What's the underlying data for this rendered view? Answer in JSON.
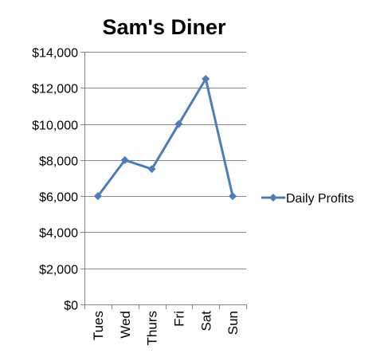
{
  "chart_data": {
    "type": "line",
    "title": "Sam's Diner",
    "categories": [
      "Tues",
      "Wed",
      "Thurs",
      "Fri",
      "Sat",
      "Sun"
    ],
    "series": [
      {
        "name": "Daily Profits",
        "values": [
          6000,
          8000,
          7500,
          10000,
          12500,
          6000
        ],
        "color": "#4a7ebb",
        "marker": "diamond"
      }
    ],
    "ylim": [
      0,
      14000
    ],
    "yticks": [
      "$0",
      "$2,000",
      "$4,000",
      "$6,000",
      "$8,000",
      "$10,000",
      "$12,000",
      "$14,000"
    ],
    "ytick_values": [
      0,
      2000,
      4000,
      6000,
      8000,
      10000,
      12000,
      14000
    ],
    "grid": true,
    "legend_position": "right"
  }
}
